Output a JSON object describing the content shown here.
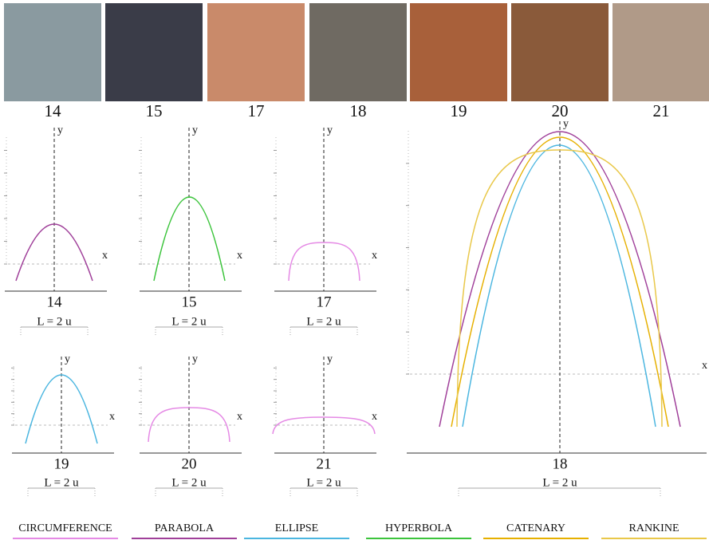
{
  "photos": [
    {
      "label": "14"
    },
    {
      "label": "15"
    },
    {
      "label": "17"
    },
    {
      "label": "18"
    },
    {
      "label": "19"
    },
    {
      "label": "20"
    },
    {
      "label": "21"
    }
  ],
  "panels": [
    {
      "label": "14"
    },
    {
      "label": "15"
    },
    {
      "label": "17"
    },
    {
      "label": "19"
    },
    {
      "label": "20"
    },
    {
      "label": "21"
    },
    {
      "label": "18"
    }
  ],
  "axes": {
    "x": "x",
    "y": "y"
  },
  "span_label": "L = 2 u",
  "legend": [
    {
      "name": "CIRCUMFERENCE",
      "color": "#e58ae5"
    },
    {
      "name": "PARABOLA",
      "color": "#a0409a"
    },
    {
      "name": "ELLIPSE",
      "color": "#4bb6e0"
    },
    {
      "name": "HYPERBOLA",
      "color": "#3cc43c"
    },
    {
      "name": "CATENARY",
      "color": "#e6b000"
    },
    {
      "name": "RANKINE",
      "color": "#e9c84a"
    }
  ]
}
